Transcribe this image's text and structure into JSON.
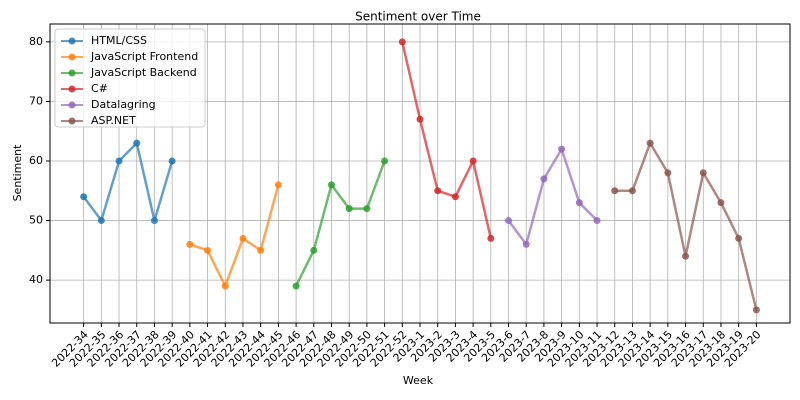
{
  "chart_data": {
    "type": "line",
    "title": "Sentiment over Time",
    "x_label": "Week",
    "y_label": "Sentiment",
    "categories": [
      "2022-34",
      "2022-35",
      "2022-36",
      "2022-37",
      "2022-38",
      "2022-39",
      "2022-40",
      "2022-41",
      "2022-42",
      "2022-43",
      "2022-44",
      "2022-45",
      "2022-46",
      "2022-47",
      "2022-48",
      "2022-49",
      "2022-50",
      "2022-51",
      "2022-52",
      "2023-1",
      "2023-2",
      "2023-3",
      "2023-4",
      "2023-5",
      "2023-6",
      "2023-7",
      "2023-8",
      "2023-9",
      "2023-10",
      "2023-11",
      "2023-12",
      "2023-13",
      "2023-14",
      "2023-15",
      "2023-16",
      "2023-17",
      "2023-18",
      "2023-19",
      "2023-20"
    ],
    "series": [
      {
        "name": "HTML/CSS",
        "color": "#1f77b4",
        "values": [
          54,
          50,
          60,
          63,
          50,
          60,
          null,
          null,
          null,
          null,
          null,
          null,
          null,
          null,
          null,
          null,
          null,
          null,
          null,
          null,
          null,
          null,
          null,
          null,
          null,
          null,
          null,
          null,
          null,
          null,
          null,
          null,
          null,
          null,
          null,
          null,
          null,
          null,
          null
        ]
      },
      {
        "name": "JavaScript Frontend",
        "color": "#ff7f0e",
        "values": [
          null,
          null,
          null,
          null,
          null,
          null,
          46,
          45,
          39,
          47,
          45,
          56,
          null,
          null,
          null,
          null,
          null,
          null,
          null,
          null,
          null,
          null,
          null,
          null,
          null,
          null,
          null,
          null,
          null,
          null,
          null,
          null,
          null,
          null,
          null,
          null,
          null,
          null,
          null
        ]
      },
      {
        "name": "JavaScript Backend",
        "color": "#2ca02c",
        "values": [
          null,
          null,
          null,
          null,
          null,
          null,
          null,
          null,
          null,
          null,
          null,
          null,
          39,
          45,
          56,
          52,
          52,
          60,
          null,
          null,
          null,
          null,
          null,
          null,
          null,
          null,
          null,
          null,
          null,
          null,
          null,
          null,
          null,
          null,
          null,
          null,
          null,
          null,
          null
        ]
      },
      {
        "name": "C#",
        "color": "#d62728",
        "values": [
          null,
          null,
          null,
          null,
          null,
          null,
          null,
          null,
          null,
          null,
          null,
          null,
          null,
          null,
          null,
          null,
          null,
          null,
          80,
          67,
          55,
          54,
          60,
          47,
          null,
          null,
          null,
          null,
          null,
          null,
          null,
          null,
          null,
          null,
          null,
          null,
          null,
          null,
          null
        ]
      },
      {
        "name": "Datalagring",
        "color": "#9467bd",
        "values": [
          null,
          null,
          null,
          null,
          null,
          null,
          null,
          null,
          null,
          null,
          null,
          null,
          null,
          null,
          null,
          null,
          null,
          null,
          null,
          null,
          null,
          null,
          null,
          null,
          50,
          46,
          57,
          62,
          53,
          50,
          null,
          null,
          null,
          null,
          null,
          null,
          null,
          null,
          null
        ]
      },
      {
        "name": "ASP.NET",
        "color": "#8c564b",
        "values": [
          null,
          null,
          null,
          null,
          null,
          null,
          null,
          null,
          null,
          null,
          null,
          null,
          null,
          null,
          null,
          null,
          null,
          null,
          null,
          null,
          null,
          null,
          null,
          null,
          null,
          null,
          null,
          null,
          null,
          null,
          55,
          55,
          63,
          58,
          44,
          58,
          53,
          47,
          35
        ]
      }
    ],
    "ylim": [
      32.8,
      83.0
    ],
    "yticks": [
      40,
      50,
      60,
      70,
      80
    ],
    "grid": true,
    "legend": "upper left"
  }
}
